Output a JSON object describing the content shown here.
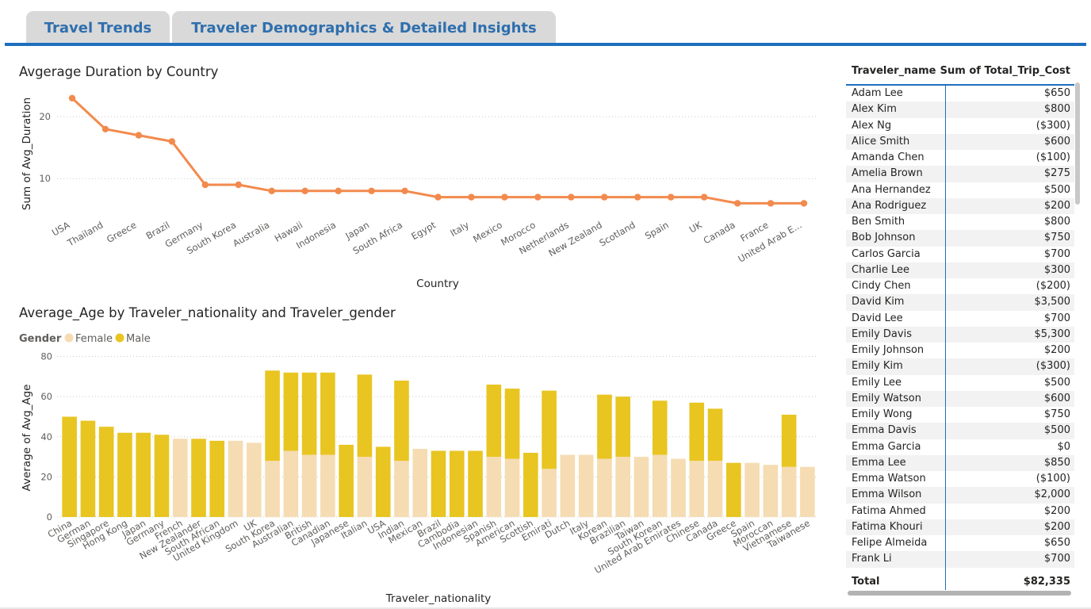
{
  "tabs": [
    {
      "label": "Travel Trends"
    },
    {
      "label": "Traveler Demographics & Detailed Insights"
    }
  ],
  "colors": {
    "accent": "#1f6fbf",
    "line": "#f28a4d",
    "male": "#e8c521",
    "female": "#f5dcb3"
  },
  "line_chart": {
    "title": "Avgerage Duration by Country",
    "chart_data": {
      "type": "line",
      "title": "Avgerage Duration by Country",
      "xlabel": "Country",
      "ylabel": "Sum of Avg_Duration",
      "ylim": [
        4,
        25
      ],
      "yticks": [
        10,
        20
      ],
      "grid": true,
      "categories": [
        "USA",
        "Thailand",
        "Greece",
        "Brazil",
        "Germany",
        "South Korea",
        "Australia",
        "Hawaii",
        "Indonesia",
        "Japan",
        "South Africa",
        "Egypt",
        "Italy",
        "Mexico",
        "Morocco",
        "Netherlands",
        "New Zealand",
        "Scotland",
        "Spain",
        "UK",
        "Canada",
        "France",
        "United Arab E..."
      ],
      "values": [
        23,
        18,
        17,
        16,
        9,
        9,
        8,
        8,
        8,
        8,
        8,
        7,
        7,
        7,
        7,
        7,
        7,
        7,
        7,
        7,
        6,
        6,
        6
      ]
    }
  },
  "bar_chart": {
    "title": "Average_Age by Traveler_nationality and Traveler_gender",
    "legend_title": "Gender",
    "chart_data": {
      "type": "bar",
      "stacked": true,
      "title": "Average_Age by Traveler_nationality and Traveler_gender",
      "xlabel": "Traveler_nationality",
      "ylabel": "Average of Avg_Age",
      "ylim": [
        0,
        80
      ],
      "yticks": [
        0,
        20,
        40,
        60,
        80
      ],
      "grid": true,
      "legend": "top-left",
      "categories": [
        "China",
        "German",
        "Singapore",
        "Hong Kong",
        "Japan",
        "Germany",
        "French",
        "New Zealander",
        "South African",
        "United Kingdom",
        "UK",
        "South Korea",
        "Australian",
        "British",
        "Canadian",
        "Japanese",
        "Italian",
        "USA",
        "Indian",
        "Mexican",
        "Brazil",
        "Cambodia",
        "Indonesian",
        "Spanish",
        "American",
        "Scottish",
        "Emirati",
        "Dutch",
        "Italy",
        "Korean",
        "Brazilian",
        "Taiwan",
        "South Korean",
        "United Arab Emirates",
        "Chinese",
        "Canada",
        "Greece",
        "Spain",
        "Moroccan",
        "Vietnamese",
        "Taiwanese"
      ],
      "series": [
        {
          "name": "Female",
          "values": [
            0,
            0,
            0,
            0,
            0,
            0,
            39,
            0,
            0,
            38,
            37,
            28,
            33,
            31,
            31,
            0,
            30,
            0,
            28,
            34,
            0,
            0,
            0,
            30,
            29,
            0,
            24,
            31,
            31,
            29,
            30,
            30,
            31,
            29,
            28,
            28,
            0,
            27,
            26,
            25,
            25
          ]
        },
        {
          "name": "Male",
          "values": [
            50,
            48,
            45,
            42,
            42,
            41,
            0,
            39,
            38,
            0,
            0,
            45,
            39,
            41,
            41,
            36,
            41,
            35,
            40,
            0,
            33,
            33,
            33,
            36,
            35,
            32,
            39,
            0,
            0,
            32,
            30,
            0,
            27,
            0,
            29,
            26,
            27,
            0,
            0,
            26,
            0
          ]
        }
      ]
    }
  },
  "table": {
    "headers": {
      "name": "Traveler_name",
      "cost": "Sum of Total_Trip_Cost"
    },
    "rows": [
      {
        "name": "Adam Lee",
        "cost": "$650"
      },
      {
        "name": "Alex Kim",
        "cost": "$800"
      },
      {
        "name": "Alex Ng",
        "cost": "($300)"
      },
      {
        "name": "Alice Smith",
        "cost": "$600"
      },
      {
        "name": "Amanda Chen",
        "cost": "($100)"
      },
      {
        "name": "Amelia Brown",
        "cost": "$275"
      },
      {
        "name": "Ana Hernandez",
        "cost": "$500"
      },
      {
        "name": "Ana Rodriguez",
        "cost": "$200"
      },
      {
        "name": "Ben Smith",
        "cost": "$800"
      },
      {
        "name": "Bob Johnson",
        "cost": "$750"
      },
      {
        "name": "Carlos Garcia",
        "cost": "$700"
      },
      {
        "name": "Charlie Lee",
        "cost": "$300"
      },
      {
        "name": "Cindy Chen",
        "cost": "($200)"
      },
      {
        "name": "David Kim",
        "cost": "$3,500"
      },
      {
        "name": "David Lee",
        "cost": "$700"
      },
      {
        "name": "Emily Davis",
        "cost": "$5,300"
      },
      {
        "name": "Emily Johnson",
        "cost": "$200"
      },
      {
        "name": "Emily Kim",
        "cost": "($300)"
      },
      {
        "name": "Emily Lee",
        "cost": "$500"
      },
      {
        "name": "Emily Watson",
        "cost": "$600"
      },
      {
        "name": "Emily Wong",
        "cost": "$750"
      },
      {
        "name": "Emma Davis",
        "cost": "$500"
      },
      {
        "name": "Emma Garcia",
        "cost": "$0"
      },
      {
        "name": "Emma Lee",
        "cost": "$850"
      },
      {
        "name": "Emma Watson",
        "cost": "($100)"
      },
      {
        "name": "Emma Wilson",
        "cost": "$2,000"
      },
      {
        "name": "Fatima Ahmed",
        "cost": "$200"
      },
      {
        "name": "Fatima Khouri",
        "cost": "$200"
      },
      {
        "name": "Felipe Almeida",
        "cost": "$650"
      },
      {
        "name": "Frank Li",
        "cost": "$700"
      }
    ],
    "total": {
      "label": "Total",
      "value": "$82,335"
    }
  }
}
